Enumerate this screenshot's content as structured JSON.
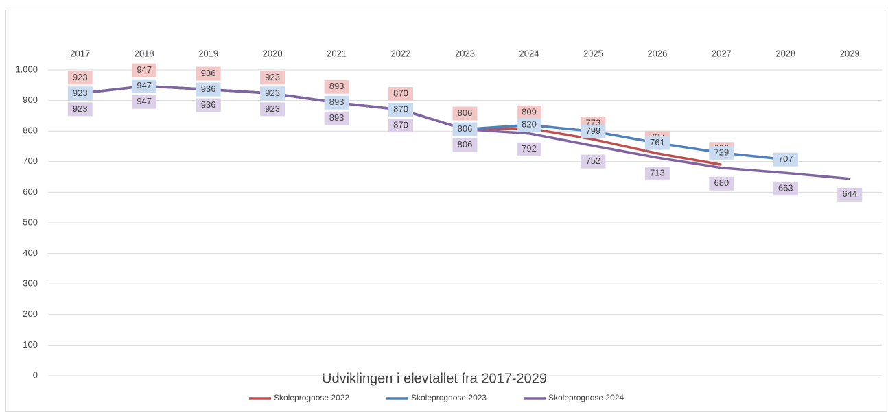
{
  "chart_data": {
    "type": "line",
    "title": "Udviklingen i elevtallet fra 2017-2029",
    "categories": [
      "2017",
      "2018",
      "2019",
      "2020",
      "2021",
      "2022",
      "2023",
      "2024",
      "2025",
      "2026",
      "2027",
      "2028",
      "2029"
    ],
    "series": [
      {
        "name": "Skoleprognose 2022",
        "color": "#c0504d",
        "label_color": "#f2c7c6",
        "values": [
          923,
          947,
          936,
          923,
          893,
          870,
          806,
          809,
          773,
          727,
          690,
          null,
          null
        ]
      },
      {
        "name": "Skoleprognose 2023",
        "color": "#4f81bd",
        "label_color": "#c9dbf0",
        "values": [
          923,
          947,
          936,
          923,
          893,
          870,
          806,
          820,
          799,
          761,
          729,
          707,
          null
        ]
      },
      {
        "name": "Skoleprognose 2024",
        "color": "#8064a2",
        "label_color": "#dccfe8",
        "values": [
          923,
          947,
          936,
          923,
          893,
          870,
          806,
          792,
          752,
          713,
          680,
          663,
          644
        ]
      }
    ],
    "ylim": [
      0,
      1000
    ],
    "yticks": [
      0,
      100,
      200,
      300,
      400,
      500,
      600,
      700,
      800,
      900,
      {
        "value": 1000,
        "label": "1.000"
      }
    ],
    "grid": true,
    "legend": "bottom"
  }
}
